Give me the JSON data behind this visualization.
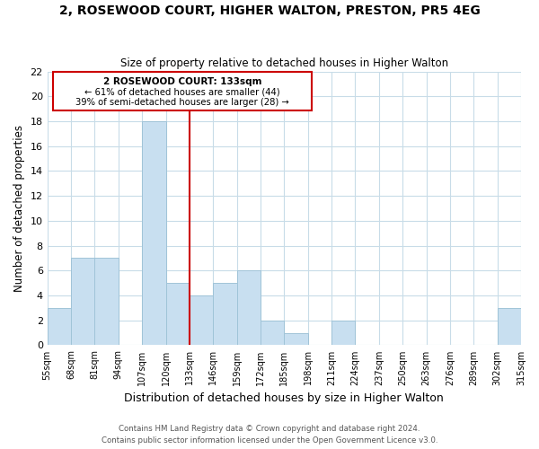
{
  "title": "2, ROSEWOOD COURT, HIGHER WALTON, PRESTON, PR5 4EG",
  "subtitle": "Size of property relative to detached houses in Higher Walton",
  "xlabel": "Distribution of detached houses by size in Higher Walton",
  "ylabel": "Number of detached properties",
  "bin_edges": [
    55,
    68,
    81,
    94,
    107,
    120,
    133,
    146,
    159,
    172,
    185,
    198,
    211,
    224,
    237,
    250,
    263,
    276,
    289,
    302,
    315
  ],
  "counts": [
    3,
    7,
    7,
    0,
    18,
    5,
    4,
    5,
    6,
    2,
    1,
    0,
    2,
    0,
    0,
    0,
    0,
    0,
    0,
    3
  ],
  "bar_color": "#c8dff0",
  "bar_edgecolor": "#a0c4d8",
  "reference_line_x": 133,
  "reference_line_color": "#cc0000",
  "ylim": [
    0,
    22
  ],
  "yticks": [
    0,
    2,
    4,
    6,
    8,
    10,
    12,
    14,
    16,
    18,
    20,
    22
  ],
  "tick_labels": [
    "55sqm",
    "68sqm",
    "81sqm",
    "94sqm",
    "107sqm",
    "120sqm",
    "133sqm",
    "146sqm",
    "159sqm",
    "172sqm",
    "185sqm",
    "198sqm",
    "211sqm",
    "224sqm",
    "237sqm",
    "250sqm",
    "263sqm",
    "276sqm",
    "289sqm",
    "302sqm",
    "315sqm"
  ],
  "annotation_title": "2 ROSEWOOD COURT: 133sqm",
  "annotation_line1": "← 61% of detached houses are smaller (44)",
  "annotation_line2": "39% of semi-detached houses are larger (28) →",
  "footer1": "Contains HM Land Registry data © Crown copyright and database right 2024.",
  "footer2": "Contains public sector information licensed under the Open Government Licence v3.0.",
  "background_color": "#ffffff",
  "grid_color": "#c8dce8"
}
